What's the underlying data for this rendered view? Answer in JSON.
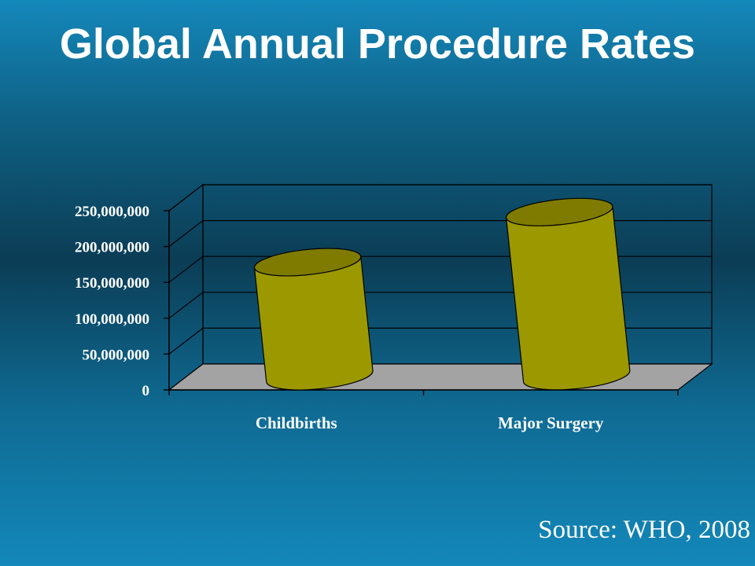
{
  "slide": {
    "title": "Global Annual Procedure Rates",
    "source": "Source:  WHO, 2008"
  },
  "colors": {
    "bar_side": "#9c9800",
    "bar_top": "#7f7b00",
    "floor": "#a3a3a3",
    "grid": "#000000"
  },
  "chart_data": {
    "type": "bar",
    "style": "3d-cylinder",
    "categories": [
      "Childbirths",
      "Major Surgery"
    ],
    "values": [
      160000000,
      230000000
    ],
    "ylim": [
      0,
      250000000
    ],
    "yticks": [
      0,
      50000000,
      100000000,
      150000000,
      200000000,
      250000000
    ],
    "ytick_labels": [
      "0",
      "50,000,000",
      "100,000,000",
      "150,000,000",
      "200,000,000",
      "250,000,000"
    ],
    "grid": true,
    "legend": "none"
  }
}
